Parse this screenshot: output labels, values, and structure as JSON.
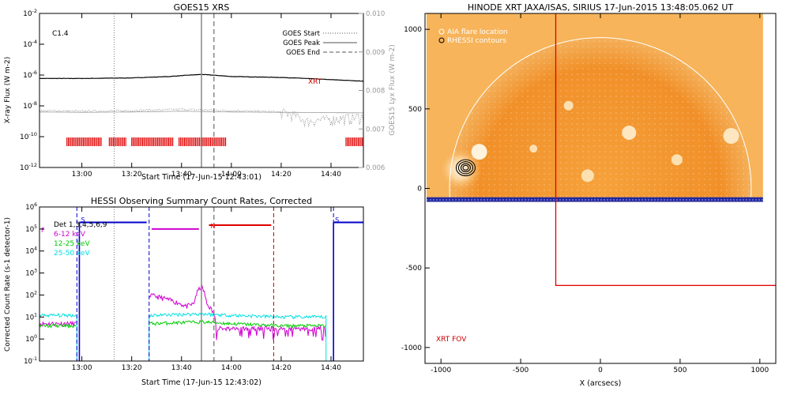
{
  "chart_data": [
    {
      "type": "line",
      "title": "GOES15 XRS",
      "xlabel": "Start Time (17-Jun-15 12:43:01)",
      "ylabel": "X-ray Flux (W m-2)",
      "ylabel_right": "GOES15 Lyx Flux (W m-2)",
      "x_ticks": [
        "13:00",
        "13:20",
        "13:40",
        "14:00",
        "14:20",
        "14:40"
      ],
      "y_ticks": [
        "10-2",
        "10-4",
        "10-6",
        "10-8",
        "10-10",
        "10-12"
      ],
      "y_ticks_right": [
        "0.010",
        "0.009",
        "0.008",
        "0.007",
        "0.006"
      ],
      "y_scale": "log",
      "ylim": [
        1e-12,
        0.01
      ],
      "ylim_right": [
        0.006,
        0.01
      ],
      "flare_class": "C1.4",
      "annotation": "XRT",
      "legend": [
        {
          "label": "GOES Start",
          "style": "dotted"
        },
        {
          "label": "GOES Peak",
          "style": "solid"
        },
        {
          "label": "GOES End",
          "style": "dashed"
        }
      ],
      "events": {
        "goes_start": "13:13",
        "goes_peak": "13:48",
        "goes_end": "13:53"
      },
      "series": [
        {
          "color": "#000000",
          "x": [
            "12:43",
            "13:00",
            "13:20",
            "13:35",
            "13:48",
            "14:00",
            "14:20",
            "14:40",
            "14:53"
          ],
          "values": [
            6e-07,
            6e-07,
            6.5e-07,
            8e-07,
            1.1e-06,
            8e-07,
            7e-07,
            5e-07,
            4e-07
          ]
        },
        {
          "color": "#777777",
          "x": [
            "12:43",
            "13:00",
            "13:20",
            "13:40",
            "14:00",
            "14:20",
            "14:30",
            "14:53"
          ],
          "values": [
            5e-09,
            4.5e-09,
            5e-09,
            6e-09,
            5e-09,
            4e-09,
            1e-09,
            2e-09
          ]
        },
        {
          "color": "#999999",
          "x": [
            "12:43",
            "13:00",
            "13:20",
            "13:40",
            "14:00",
            "14:20",
            "14:53"
          ],
          "values": [
            4e-09,
            3.8e-09,
            4e-09,
            4.5e-09,
            4e-09,
            3.8e-09,
            3.5e-09
          ]
        }
      ],
      "xrt_coverage": [
        [
          "12:54",
          "13:08"
        ],
        [
          "13:11",
          "13:18"
        ],
        [
          "13:20",
          "13:37"
        ],
        [
          "13:39",
          "13:58"
        ],
        [
          "14:46",
          "14:53"
        ]
      ]
    },
    {
      "type": "line",
      "title": "HESSI Observing Summary Count Rates, Corrected",
      "xlabel": "Start Time (17-Jun-15 12:43:02)",
      "ylabel": "Corrected Count Rate (s-1 detector-1)",
      "x_ticks": [
        "13:00",
        "13:20",
        "13:40",
        "14:00",
        "14:20",
        "14:40"
      ],
      "y_ticks": [
        "10-1",
        "100",
        "101",
        "102",
        "103",
        "104",
        "105",
        "106"
      ],
      "y_scale": "log",
      "ylim": [
        0.1,
        1000000.0
      ],
      "legend_header": "Det 1,3,4,5,6,9",
      "series": [
        {
          "name": "6-12 keV",
          "color": "#d000d0",
          "x": [
            "12:43",
            "12:58",
            "13:27",
            "13:35",
            "13:42",
            "13:45",
            "13:48",
            "13:50",
            "13:54",
            "14:20",
            "14:38"
          ],
          "values": [
            5,
            5,
            100,
            60,
            30,
            40,
            250,
            40,
            3,
            3,
            3
          ]
        },
        {
          "name": "12-25 keV",
          "color": "#00cc00",
          "x": [
            "12:43",
            "12:58",
            "13:27",
            "13:48",
            "14:00",
            "14:20",
            "14:38"
          ],
          "values": [
            4,
            4,
            5,
            6,
            5,
            4,
            4
          ]
        },
        {
          "name": "25-50 keV",
          "color": "#00e0e0",
          "x": [
            "12:43",
            "12:58",
            "13:27",
            "13:48",
            "14:00",
            "14:20",
            "14:38"
          ],
          "values": [
            12,
            12,
            12,
            14,
            12,
            10,
            10
          ]
        }
      ],
      "flag_bars": [
        {
          "color": "#0000cc",
          "x": [
            "12:59",
            "13:26"
          ],
          "value": 200000
        },
        {
          "color": "#0000cc",
          "x": [
            "14:41",
            "14:53"
          ],
          "value": 200000
        },
        {
          "color": "#d000d0",
          "x": [
            "13:28",
            "13:47"
          ],
          "value": 100000
        },
        {
          "color": "#e00000",
          "x": [
            "13:51",
            "14:16"
          ],
          "value": 150000
        }
      ],
      "flag_letters": [
        {
          "text": "F",
          "x": "12:43",
          "color": "#d000d0"
        },
        {
          "text": "S",
          "x": "12:59",
          "color": "#0000cc"
        },
        {
          "text": "S",
          "x": "14:41",
          "color": "#0000cc"
        },
        {
          "text": "N",
          "x": "13:51",
          "color": "#e00000"
        }
      ],
      "events": {
        "goes_start": "13:13",
        "goes_peak": "13:48",
        "goes_end": "13:53"
      },
      "night_markers": [
        {
          "x": "12:58",
          "color": "#0000cc"
        },
        {
          "x": "13:27",
          "color": "#0000cc"
        },
        {
          "x": "14:17",
          "color": "#cc0000"
        },
        {
          "x": "14:41",
          "color": "#0000cc"
        }
      ]
    },
    {
      "type": "heatmap",
      "title": "HINODE XRT JAXA/ISAS, SIRIUS 17-Jun-2015 13:48:05.062 UT",
      "xlabel": "X (arcsecs)",
      "ylabel": "",
      "x_ticks": [
        "-1000",
        "-500",
        "0",
        "500",
        "1000"
      ],
      "y_ticks": [
        "1000",
        "500",
        "0",
        "-500",
        "-1000"
      ],
      "xlim": [
        -1100,
        1100
      ],
      "ylim": [
        -1100,
        1100
      ],
      "legend": [
        {
          "label": "AIA flare location",
          "color": "#ffffff"
        },
        {
          "label": "RHESSI contours",
          "color": "#000000"
        }
      ],
      "fov_label": "XRT FOV",
      "fov_box": {
        "x0": -280,
        "y0": -610,
        "x1": 1110,
        "y1": 1110,
        "color": "#e00000"
      },
      "image_extent": {
        "x0": -1090,
        "x1": 1020,
        "y0": -80,
        "y1": 1100
      },
      "solar_radius": 946,
      "rhessi_source": {
        "x": -850,
        "y": 130
      },
      "colors": {
        "sun": "#f08c1e",
        "corona": "#f7b45a",
        "limb_band": "#2a2f9a"
      }
    }
  ]
}
